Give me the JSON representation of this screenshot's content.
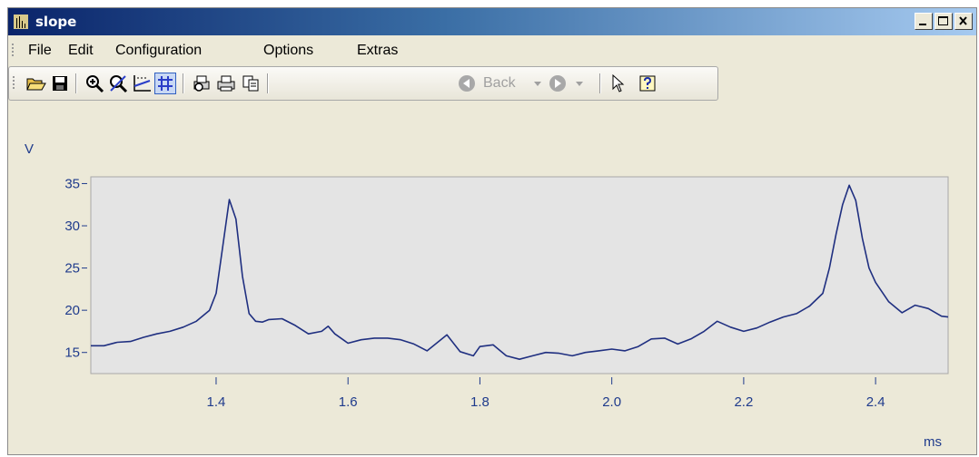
{
  "window": {
    "title": "slope"
  },
  "menu": [
    {
      "id": "file",
      "label": "File"
    },
    {
      "id": "edit",
      "label": "Edit"
    },
    {
      "id": "configuration",
      "label": "Configuration"
    },
    {
      "id": "options",
      "label": "Options"
    },
    {
      "id": "extras",
      "label": "Extras"
    }
  ],
  "toolbar": {
    "back_label": "Back",
    "icons": [
      "open-folder-icon",
      "save-icon",
      "zoom-in-icon",
      "zoom-off-icon",
      "axis-scale-icon",
      "grid-icon",
      "print-preview-icon",
      "print-icon",
      "copy-icon",
      "back-arrow-icon",
      "forward-arrow-icon",
      "pointer-icon",
      "help-icon"
    ]
  },
  "colors": {
    "line": "#1f2f80",
    "plot_bg": "#e4e4e4",
    "axis_text": "#1f3b8c"
  },
  "chart_data": {
    "type": "line",
    "ylabel": "V",
    "xlabel": "ms",
    "xlim": [
      1.21,
      2.51
    ],
    "ylim": [
      12.5,
      35.8
    ],
    "xticks": [
      "1.4",
      "1.6",
      "1.8",
      "2.0",
      "2.2",
      "2.4"
    ],
    "yticks": [
      "15",
      "20",
      "25",
      "30",
      "35"
    ],
    "grid": false,
    "series": [
      {
        "x": [
          1.21,
          1.23,
          1.25,
          1.27,
          1.29,
          1.31,
          1.33,
          1.35,
          1.37,
          1.39,
          1.4,
          1.41,
          1.42,
          1.43,
          1.44,
          1.45,
          1.46,
          1.47,
          1.48,
          1.5,
          1.52,
          1.54,
          1.56,
          1.57,
          1.58,
          1.6,
          1.62,
          1.64,
          1.66,
          1.68,
          1.7,
          1.72,
          1.75,
          1.77,
          1.79,
          1.8,
          1.82,
          1.84,
          1.86,
          1.88,
          1.9,
          1.92,
          1.94,
          1.96,
          1.98,
          2.0,
          2.02,
          2.04,
          2.06,
          2.08,
          2.1,
          2.12,
          2.14,
          2.16,
          2.18,
          2.2,
          2.22,
          2.24,
          2.26,
          2.28,
          2.3,
          2.32,
          2.33,
          2.34,
          2.35,
          2.36,
          2.37,
          2.38,
          2.39,
          2.4,
          2.42,
          2.44,
          2.46,
          2.48,
          2.5,
          2.51
        ],
        "y": [
          15.8,
          15.8,
          16.2,
          16.3,
          16.8,
          17.2,
          17.5,
          18.0,
          18.7,
          20.0,
          22.0,
          27.5,
          33.1,
          30.8,
          24.0,
          19.6,
          18.7,
          18.6,
          18.9,
          19.0,
          18.2,
          17.2,
          17.5,
          18.1,
          17.2,
          16.1,
          16.5,
          16.7,
          16.7,
          16.5,
          16.0,
          15.2,
          17.1,
          15.1,
          14.6,
          15.7,
          15.9,
          14.6,
          14.2,
          14.6,
          15.0,
          14.9,
          14.6,
          15.0,
          15.2,
          15.4,
          15.2,
          15.7,
          16.6,
          16.7,
          16.0,
          16.6,
          17.5,
          18.7,
          18.0,
          17.5,
          17.9,
          18.6,
          19.2,
          19.6,
          20.5,
          22.0,
          25.0,
          29.0,
          32.5,
          34.8,
          33.0,
          28.5,
          25.0,
          23.3,
          21.0,
          19.7,
          20.6,
          20.2,
          19.3,
          19.2
        ]
      }
    ]
  }
}
